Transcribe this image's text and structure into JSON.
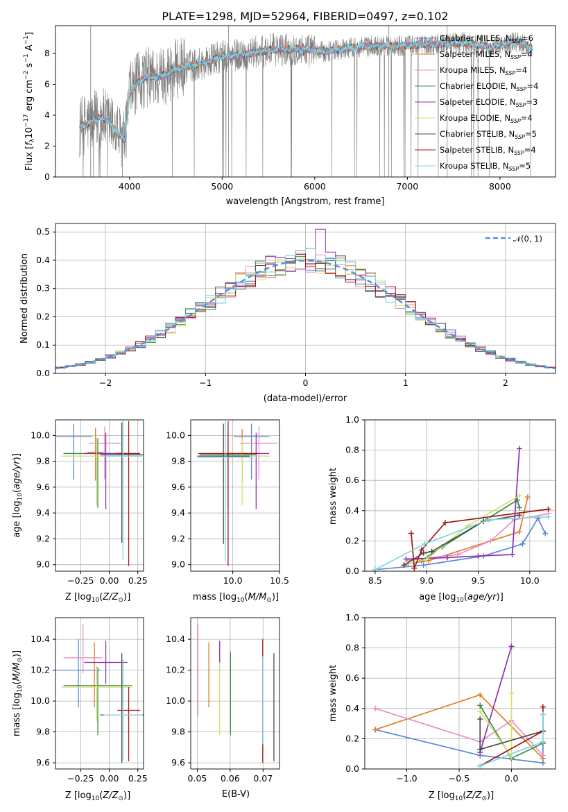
{
  "colors": {
    "chabrier_miles": "#5b85d6",
    "salpeter_miles": "#e07b24",
    "kroupa_miles": "#e88fc2",
    "chabrier_elodie": "#3f8a4e",
    "salpeter_elodie": "#8e2fb0",
    "kroupa_elodie": "#cfe36a",
    "chabrier_stelib": "#4a4a4a",
    "salpeter_stelib": "#a01818",
    "kroupa_stelib": "#7fd6e0",
    "data_gray": "#7f7f7f",
    "normal_dashed": "#5b8fd6"
  },
  "chart_data": [
    {
      "id": "spectrum",
      "type": "line",
      "title": "PLATE=1298, MJD=52964, FIBERID=0497, z=0.102",
      "xlabel": "wavelength [Angstrom, rest frame]",
      "ylabel": "Flux [f_λ 10^-17 erg cm^-2 s^-1 A^-1]",
      "xlim": [
        3200,
        8600
      ],
      "ylim": [
        0,
        9.8
      ],
      "xticks": [
        "4000",
        "5000",
        "6000",
        "7000",
        "8000"
      ],
      "yticks": [
        "0",
        "2",
        "4",
        "6",
        "8"
      ],
      "legend": [
        {
          "label": "Chabrier MILES, N",
          "sub": "SSP",
          "n": "=6"
        },
        {
          "label": "Salpeter MILES, N",
          "sub": "SSP",
          "n": "=4"
        },
        {
          "label": "Kroupa MILES, N",
          "sub": "SSP",
          "n": "=4"
        },
        {
          "label": "Chabrier ELODIE, N",
          "sub": "SSP",
          "n": "=4"
        },
        {
          "label": "Salpeter ELODIE, N",
          "sub": "SSP",
          "n": "=3"
        },
        {
          "label": "Kroupa ELODIE, N",
          "sub": "SSP",
          "n": "=4"
        },
        {
          "label": "Chabrier STELIB, N",
          "sub": "SSP",
          "n": "=5"
        },
        {
          "label": "Salpeter STELIB, N",
          "sub": "SSP",
          "n": "=4"
        },
        {
          "label": "Kroupa STELIB, N",
          "sub": "SSP",
          "n": "=5"
        }
      ],
      "continuum": {
        "x": [
          3460,
          3600,
          3700,
          3800,
          3900,
          3950,
          4000,
          4100,
          4200,
          4300,
          4500,
          4800,
          5000,
          5200,
          5500,
          5800,
          6100,
          6400,
          6700,
          7000,
          7300,
          7600,
          7900,
          8200,
          8350
        ],
        "y": [
          3.2,
          3.6,
          3.9,
          3.4,
          2.6,
          2.4,
          5.4,
          6.2,
          6.5,
          6.4,
          7.0,
          7.4,
          7.8,
          7.9,
          8.2,
          8.3,
          8.1,
          8.4,
          8.5,
          8.5,
          8.6,
          8.7,
          8.4,
          8.8,
          8.3
        ]
      }
    },
    {
      "id": "residuals",
      "type": "line",
      "xlabel": "(data-model)/error",
      "ylabel": "Normed distribution",
      "xlim": [
        -2.5,
        2.5
      ],
      "ylim": [
        0,
        0.53
      ],
      "xticks": [
        "−2",
        "−1",
        "0",
        "1",
        "2"
      ],
      "yticks": [
        "0.0",
        "0.1",
        "0.2",
        "0.3",
        "0.4",
        "0.5"
      ],
      "legend_label": "𝒩(0, 1)",
      "normal_curve": {
        "mu": 0,
        "sigma": 1
      }
    },
    {
      "id": "age_vs_Z",
      "type": "scatter",
      "xlabel": "Z [log10(Z/Z⊙)]",
      "ylabel": "age  [log10(age/yr)]",
      "xlim": [
        -0.47,
        0.3
      ],
      "ylim": [
        8.95,
        10.12
      ],
      "xticks": [
        "−0.25",
        "0.00",
        "0.25"
      ],
      "yticks": [
        "9.0",
        "9.2",
        "9.4",
        "9.6",
        "9.8",
        "10.0"
      ],
      "points": [
        {
          "s": "chabrier_miles",
          "x": -0.31,
          "y": 9.99,
          "xerr": 0.16,
          "yerr": [
            0.33,
            0.1
          ]
        },
        {
          "s": "salpeter_miles",
          "x": -0.12,
          "y": 9.87,
          "xerr": 0.07,
          "yerr": [
            0.22,
            0.19
          ]
        },
        {
          "s": "kroupa_miles",
          "x": -0.04,
          "y": 9.94,
          "xerr": 0.14,
          "yerr": [
            0.28,
            0.13
          ]
        },
        {
          "s": "chabrier_elodie",
          "x": -0.1,
          "y": 9.86,
          "xerr": 0.3,
          "yerr": [
            0.42,
            0.12
          ]
        },
        {
          "s": "salpeter_elodie",
          "x": -0.03,
          "y": 9.86,
          "xerr": 0.19,
          "yerr": [
            0.43,
            0.16
          ]
        },
        {
          "s": "kroupa_elodie",
          "x": -0.11,
          "y": 9.84,
          "xerr": 0.31,
          "yerr": [
            0.38,
            0.14
          ]
        },
        {
          "s": "chabrier_stelib",
          "x": 0.11,
          "y": 9.85,
          "xerr": 0.19,
          "yerr": [
            0.68,
            0.25
          ]
        },
        {
          "s": "salpeter_stelib",
          "x": 0.17,
          "y": 9.86,
          "xerr": 0.1,
          "yerr": [
            0.87,
            0.25
          ]
        },
        {
          "s": "kroupa_stelib",
          "x": 0.12,
          "y": 9.84,
          "xerr": 0.17,
          "yerr": [
            0.8,
            0.28
          ]
        }
      ]
    },
    {
      "id": "age_vs_mass",
      "type": "scatter",
      "xlabel": "mass [log10(M/M⊙)]",
      "ylabel": "",
      "xlim": [
        9.55,
        10.5
      ],
      "ylim": [
        8.95,
        10.12
      ],
      "xticks": [
        "10.0",
        "10.5"
      ],
      "yticks": [
        "9.0",
        "9.2",
        "9.4",
        "9.6",
        "9.8",
        "10.0"
      ],
      "points": [
        {
          "s": "chabrier_miles",
          "x": 10.2,
          "y": 9.99,
          "xerr": 0.19,
          "yerr": [
            0.33,
            0.1
          ]
        },
        {
          "s": "salpeter_miles",
          "x": 10.1,
          "y": 9.86,
          "xerr": 0.14,
          "yerr": [
            0.22,
            0.19
          ]
        },
        {
          "s": "kroupa_miles",
          "x": 10.28,
          "y": 9.94,
          "xerr": 0.2,
          "yerr": [
            0.28,
            0.13
          ]
        },
        {
          "s": "chabrier_elodie",
          "x": 9.95,
          "y": 9.85,
          "xerr": 0.3,
          "yerr": [
            0.42,
            0.12
          ]
        },
        {
          "s": "salpeter_elodie",
          "x": 10.25,
          "y": 9.86,
          "xerr": 0.14,
          "yerr": [
            0.43,
            0.16
          ]
        },
        {
          "s": "kroupa_elodie",
          "x": 10.1,
          "y": 9.84,
          "xerr": 0.3,
          "yerr": [
            0.38,
            0.14
          ]
        },
        {
          "s": "chabrier_stelib",
          "x": 9.9,
          "y": 9.84,
          "xerr": 0.28,
          "yerr": [
            0.68,
            0.25
          ]
        },
        {
          "s": "salpeter_stelib",
          "x": 9.95,
          "y": 9.86,
          "xerr": 0.32,
          "yerr": [
            0.87,
            0.25
          ]
        },
        {
          "s": "kroupa_stelib",
          "x": 9.92,
          "y": 9.83,
          "xerr": 0.3,
          "yerr": [
            0.8,
            0.28
          ]
        }
      ]
    },
    {
      "id": "weight_vs_age",
      "type": "line",
      "xlabel": "age  [log10(age/yr)]",
      "ylabel": "mass weight",
      "xlim": [
        8.4,
        10.25
      ],
      "ylim": [
        0,
        1.0
      ],
      "xticks": [
        "8.5",
        "9.0",
        "9.5",
        "10.0"
      ],
      "yticks": [
        "0.0",
        "0.2",
        "0.4",
        "0.6",
        "0.8",
        "1.0"
      ],
      "series": [
        {
          "s": "chabrier_miles",
          "x": [
            8.5,
            8.97,
            9.55,
            9.93,
            10.08,
            10.15
          ],
          "y": [
            0.01,
            0.04,
            0.1,
            0.18,
            0.35,
            0.25
          ]
        },
        {
          "s": "salpeter_miles",
          "x": [
            8.82,
            9.02,
            9.9,
            9.98
          ],
          "y": [
            0.05,
            0.07,
            0.26,
            0.49
          ]
        },
        {
          "s": "kroupa_miles",
          "x": [
            8.82,
            9.3,
            9.62,
            9.85,
            10.18
          ],
          "y": [
            0.07,
            0.11,
            0.2,
            0.34,
            0.38
          ]
        },
        {
          "s": "chabrier_elodie",
          "x": [
            8.78,
            8.95,
            9.15,
            9.88,
            9.9
          ],
          "y": [
            0.04,
            0.07,
            0.16,
            0.47,
            0.42
          ]
        },
        {
          "s": "salpeter_elodie",
          "x": [
            8.8,
            9.2,
            9.5,
            9.83,
            9.9
          ],
          "y": [
            0.08,
            0.09,
            0.1,
            0.11,
            0.81
          ]
        },
        {
          "s": "kroupa_elodie",
          "x": [
            8.78,
            9.0,
            9.4,
            9.9
          ],
          "y": [
            0.04,
            0.08,
            0.3,
            0.5
          ]
        },
        {
          "s": "chabrier_stelib",
          "x": [
            8.78,
            8.97,
            9.05,
            9.55,
            9.9
          ],
          "y": [
            0.04,
            0.12,
            0.13,
            0.33,
            0.37
          ]
        },
        {
          "s": "salpeter_stelib",
          "x": [
            8.85,
            8.88,
            8.95,
            9.18,
            10.18
          ],
          "y": [
            0.25,
            0.02,
            0.14,
            0.32,
            0.41
          ]
        },
        {
          "s": "kroupa_stelib",
          "x": [
            8.5,
            8.98,
            9.6,
            10.18
          ],
          "y": [
            0.01,
            0.18,
            0.34,
            0.36
          ]
        }
      ]
    },
    {
      "id": "mass_vs_Z",
      "type": "scatter",
      "xlabel": "Z [log10(Z/Z⊙)]",
      "ylabel": "mass [log10(M/M⊙)]",
      "xlim": [
        -0.47,
        0.3
      ],
      "ylim": [
        9.56,
        10.54
      ],
      "xticks": [
        "−0.25",
        "0.00",
        "0.25"
      ],
      "yticks": [
        "9.6",
        "9.8",
        "10.0",
        "10.2",
        "10.4"
      ],
      "points": [
        {
          "s": "chabrier_miles",
          "x": -0.27,
          "y": 10.2,
          "xerr": 0.2,
          "yerr": [
            0.24,
            0.2
          ]
        },
        {
          "s": "salpeter_miles",
          "x": -0.13,
          "y": 10.1,
          "xerr": 0.24,
          "yerr": [
            0.14,
            0.28
          ]
        },
        {
          "s": "kroupa_miles",
          "x": -0.23,
          "y": 10.28,
          "xerr": 0.17,
          "yerr": [
            0.1,
            0.22
          ]
        },
        {
          "s": "chabrier_elodie",
          "x": -0.1,
          "y": 10.1,
          "xerr": 0.3,
          "yerr": [
            0.32,
            0.12
          ]
        },
        {
          "s": "salpeter_elodie",
          "x": -0.03,
          "y": 10.25,
          "xerr": 0.19,
          "yerr": [
            0.14,
            0.14
          ]
        },
        {
          "s": "kroupa_elodie",
          "x": -0.11,
          "y": 10.09,
          "xerr": 0.31,
          "yerr": [
            0.22,
            0.14
          ]
        },
        {
          "s": "chabrier_stelib",
          "x": 0.11,
          "y": 9.91,
          "xerr": 0.19,
          "yerr": [
            0.31,
            0.4
          ]
        },
        {
          "s": "salpeter_stelib",
          "x": 0.17,
          "y": 9.94,
          "xerr": 0.1,
          "yerr": [
            0.33,
            0.15
          ]
        },
        {
          "s": "kroupa_stelib",
          "x": 0.12,
          "y": 9.91,
          "xerr": 0.17,
          "yerr": [
            0.3,
            0.36
          ]
        }
      ]
    },
    {
      "id": "mass_vs_ebv",
      "type": "scatter",
      "xlabel": "E(B-V)",
      "ylabel": "",
      "xlim": [
        0.048,
        0.075
      ],
      "ylim": [
        9.56,
        10.54
      ],
      "xticks": [
        "0.05",
        "0.06",
        "0.07"
      ],
      "yticks": [
        "9.6",
        "9.8",
        "10.0",
        "10.2",
        "10.4"
      ],
      "points": [
        {
          "s": "kroupa_miles",
          "x": 0.0502,
          "y": 10.2,
          "yerr": [
            0.3,
            0.3
          ]
        },
        {
          "s": "salpeter_miles",
          "x": 0.0535,
          "y": 10.14,
          "yerr": [
            0.18,
            0.24
          ]
        },
        {
          "s": "kroupa_elodie",
          "x": 0.0568,
          "y": 10.1,
          "yerr": [
            0.32,
            0.18
          ]
        },
        {
          "s": "salpeter_elodie",
          "x": 0.0568,
          "y": 10.3,
          "yerr": [
            0.05,
            0.09
          ]
        },
        {
          "s": "chabrier_elodie",
          "x": 0.0601,
          "y": 10.0,
          "yerr": [
            0.22,
            0.32
          ]
        },
        {
          "s": "salpeter_stelib",
          "x": 0.0699,
          "y": 10.03,
          "yerr": [
            0.43,
            0.37
          ]
        },
        {
          "s": "kroupa_stelib",
          "x": 0.0699,
          "y": 10.0,
          "yerr": [
            0.28,
            0.29
          ]
        },
        {
          "s": "chabrier_stelib",
          "x": 0.0733,
          "y": 9.96,
          "yerr": [
            0.35,
            0.35
          ]
        }
      ]
    },
    {
      "id": "weight_vs_Z",
      "type": "line",
      "xlabel": "Z [log10(Z/Z⊙)]",
      "ylabel": "mass weight",
      "xlim": [
        -1.4,
        0.42
      ],
      "ylim": [
        0,
        1.0
      ],
      "xticks": [
        "−1.0",
        "−0.5",
        "0.0"
      ],
      "yticks": [
        "0.0",
        "0.2",
        "0.4",
        "0.6",
        "0.8",
        "1.0"
      ],
      "series": [
        {
          "s": "chabrier_miles",
          "x": [
            -1.3,
            -0.3,
            0.3,
            0.3
          ],
          "y": [
            0.26,
            0.09,
            0.04,
            0.17
          ]
        },
        {
          "s": "salpeter_miles",
          "x": [
            -1.3,
            -0.3,
            0.3
          ],
          "y": [
            0.26,
            0.49,
            0.07
          ]
        },
        {
          "s": "kroupa_miles",
          "x": [
            -1.3,
            -0.3,
            0.0,
            0.3
          ],
          "y": [
            0.4,
            0.18,
            0.32,
            0.09
          ]
        },
        {
          "s": "chabrier_elodie",
          "x": [
            -0.3,
            0.0,
            0.3
          ],
          "y": [
            0.42,
            0.07,
            0.17
          ]
        },
        {
          "s": "salpeter_elodie",
          "x": [
            -0.3,
            0.0
          ],
          "y": [
            0.11,
            0.81
          ]
        },
        {
          "s": "kroupa_elodie",
          "x": [
            -0.3,
            0.0,
            0.0
          ],
          "y": [
            0.38,
            0.08,
            0.5
          ]
        },
        {
          "s": "chabrier_stelib",
          "x": [
            -0.3,
            -0.3,
            0.3
          ],
          "y": [
            0.33,
            0.13,
            0.25
          ]
        },
        {
          "s": "salpeter_stelib",
          "x": [
            -0.3,
            0.3,
            0.3
          ],
          "y": [
            0.02,
            0.25,
            0.41
          ]
        },
        {
          "s": "kroupa_stelib",
          "x": [
            -0.3,
            0.3,
            0.3
          ],
          "y": [
            0.02,
            0.18,
            0.36
          ]
        }
      ]
    }
  ]
}
